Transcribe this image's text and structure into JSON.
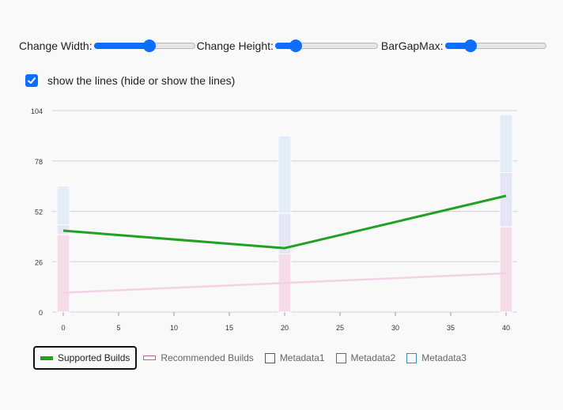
{
  "controls": {
    "width_label": "Change Width:",
    "height_label": "Change Height:",
    "bargap_label": "BarGapMax:",
    "width_value": 0.55,
    "height_value": 0.2,
    "bargap_value": 0.25
  },
  "checkbox": {
    "label": "show the lines (hide or show the lines)",
    "checked": true
  },
  "legend": {
    "items": [
      {
        "label": "Supported Builds",
        "color": "#22a022",
        "kind": "line",
        "active": true
      },
      {
        "label": "Recommended Builds",
        "color": "#c060a0",
        "kind": "line-faded",
        "active": false
      },
      {
        "label": "Metadata1",
        "color": "#a0288c",
        "kind": "box",
        "active": false
      },
      {
        "label": "Metadata2",
        "color": "#5060c8",
        "kind": "box",
        "active": false
      },
      {
        "label": "Metadata3",
        "color": "#3c8cb4",
        "kind": "box",
        "active": false
      }
    ]
  },
  "chart_data": {
    "type": "bar",
    "x_ticks": [
      0,
      5,
      10,
      15,
      20,
      25,
      30,
      35,
      40
    ],
    "y_ticks": [
      0,
      26,
      52,
      78,
      104
    ],
    "xlim": [
      -1,
      41
    ],
    "ylim": [
      0,
      104
    ],
    "grid": true,
    "legend_position": "bottom",
    "x": [
      0,
      20,
      40
    ],
    "stacked_series": [
      {
        "name": "Metadata1",
        "values": [
          40,
          30,
          44
        ],
        "color": "#f6dbe9"
      },
      {
        "name": "Metadata2",
        "values": [
          5,
          21,
          28
        ],
        "color": "#e4e6f6"
      },
      {
        "name": "Metadata3",
        "values": [
          20,
          40,
          30
        ],
        "color": "#e3edf8"
      }
    ],
    "line_series": [
      {
        "name": "Supported Builds",
        "values": [
          42,
          33,
          60
        ],
        "color": "#22a022"
      },
      {
        "name": "Recommended Builds",
        "values": [
          10,
          15,
          20
        ],
        "color": "#f3d2e6"
      }
    ]
  }
}
